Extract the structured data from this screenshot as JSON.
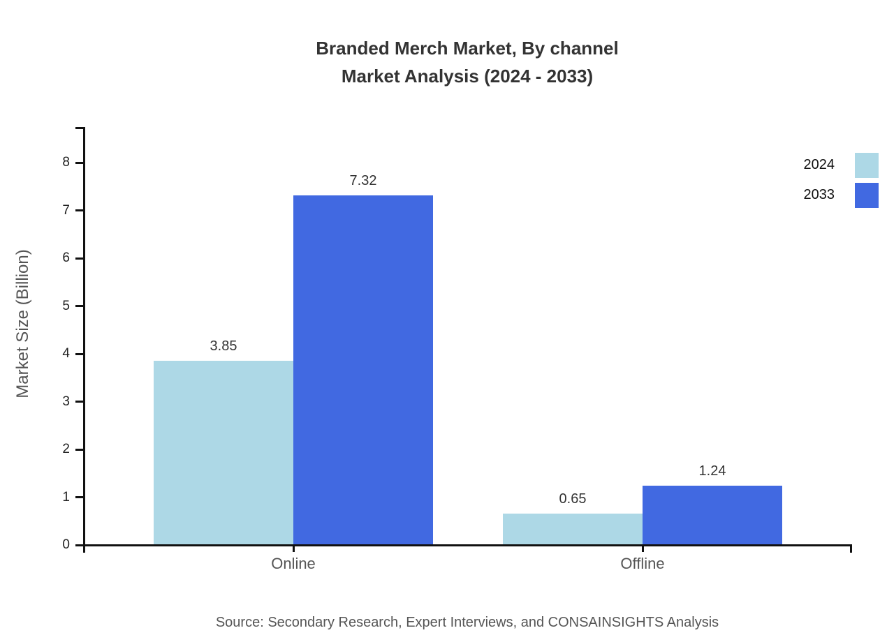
{
  "title": {
    "line1": "Branded Merch Market, By channel",
    "line2": "Market Analysis (2024 - 2033)"
  },
  "chart_data": {
    "type": "bar",
    "title": "Branded Merch Market, By channel Market Analysis (2024 - 2033)",
    "categories": [
      "Online",
      "Offline"
    ],
    "series": [
      {
        "name": "2024",
        "color": "#ADD8E6",
        "values": [
          3.85,
          0.65
        ]
      },
      {
        "name": "2033",
        "color": "#4169E1",
        "values": [
          7.32,
          1.24
        ]
      }
    ],
    "value_labels": [
      "3.85",
      "7.32",
      "0.65",
      "1.24"
    ],
    "xlabel": "",
    "ylabel": "Market Size (Billion)",
    "ylim": [
      0,
      8.74
    ],
    "yticks": [
      0,
      1,
      2,
      3,
      4,
      5,
      6,
      7,
      8
    ],
    "grid": false,
    "legend_position": "top-right"
  },
  "source": "Source: Secondary Research, Expert Interviews, and CONSAINSIGHTS Analysis",
  "colors": {
    "series_2024": "#ADD8E6",
    "series_2033": "#4169E1",
    "axis": "#111111",
    "title_text": "#333333",
    "muted_text": "#555555"
  }
}
